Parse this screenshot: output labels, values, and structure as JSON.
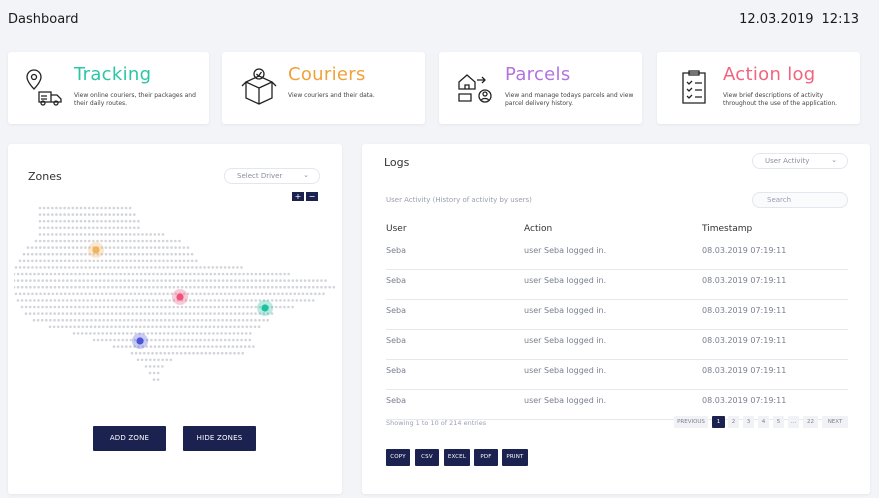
{
  "header": {
    "title": "Dashboard",
    "date": "12.03.2019",
    "time": "12:13"
  },
  "cards": [
    {
      "title": "Tracking",
      "desc": "View online couriers, their packages and their daily routes.",
      "color": "#2cc5a8",
      "icon": "tracking-icon"
    },
    {
      "title": "Couriers",
      "desc": "View couriers and their data.",
      "color": "#f0a23a",
      "icon": "courier-box-icon"
    },
    {
      "title": "Parcels",
      "desc": "View and manage todays parcels and view parcel delivery history.",
      "color": "#b173e0",
      "icon": "parcels-icon"
    },
    {
      "title": "Action log",
      "desc": "View brief descriptions of activity throughout the use of the application.",
      "color": "#f2647e",
      "icon": "clipboard-icon"
    }
  ],
  "zones": {
    "title": "Zones",
    "select_driver": "Select Driver",
    "zoom_in": "+",
    "zoom_out": "−",
    "add_zone": "ADD ZONE",
    "hide_zones": "HIDE ZONES",
    "markers": [
      {
        "name": "marker-orange",
        "color": "#f2b35c"
      },
      {
        "name": "marker-pink",
        "color": "#f0527a"
      },
      {
        "name": "marker-teal",
        "color": "#1fbfa0"
      },
      {
        "name": "marker-blue",
        "color": "#4b53d6"
      }
    ]
  },
  "logs": {
    "title": "Logs",
    "filter": "User Activity",
    "subtitle": "User Activity (History of activity by users)",
    "search_placeholder": "Search",
    "columns": [
      "User",
      "Action",
      "Timestamp"
    ],
    "rows": [
      [
        "Seba",
        "user Seba logged in.",
        "08.03.2019 07:19:11"
      ],
      [
        "Seba",
        "user Seba logged in.",
        "08.03.2019 07:19:11"
      ],
      [
        "Seba",
        "user Seba logged in.",
        "08.03.2019 07:19:11"
      ],
      [
        "Seba",
        "user Seba logged in.",
        "08.03.2019 07:19:11"
      ],
      [
        "Seba",
        "user Seba logged in.",
        "08.03.2019 07:19:11"
      ],
      [
        "Seba",
        "user Seba logged in.",
        "08.03.2019 07:19:11"
      ]
    ],
    "showing": "Showing 1 to 10 of 214 entries",
    "pagination": {
      "previous": "PREVIOUS",
      "pages": [
        "1",
        "2",
        "3",
        "4",
        "5",
        "...",
        "22"
      ],
      "next": "NEXT",
      "active": "1"
    },
    "export": [
      "COPY",
      "CSV",
      "EXCEL",
      "PDF",
      "PRINT"
    ]
  }
}
